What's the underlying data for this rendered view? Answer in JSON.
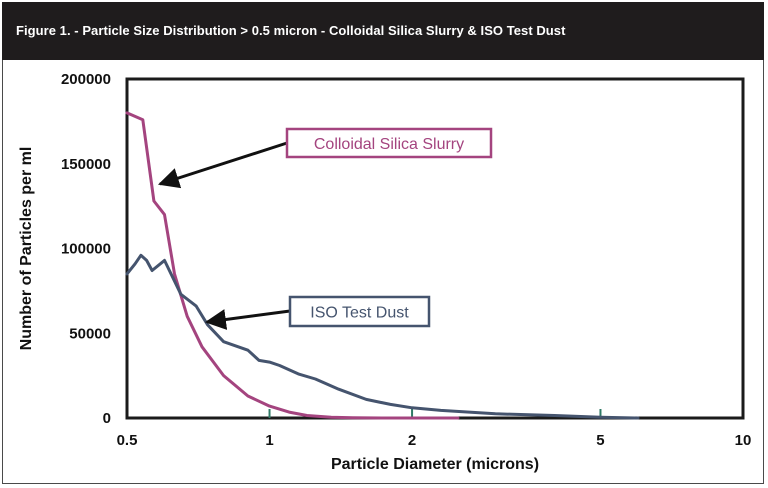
{
  "chart_data": {
    "type": "line",
    "title": "Figure 1. - Particle Size Distribution > 0.5 micron - Colloidal Silica Slurry & ISO Test Dust",
    "xlabel": "Particle Diameter (microns)",
    "ylabel": "Number of Particles per ml",
    "x_scale": "log",
    "xlim": [
      0.5,
      10
    ],
    "ylim": [
      0,
      200000
    ],
    "x_ticks": [
      0.5,
      1,
      2,
      5,
      10
    ],
    "x_tick_labels": [
      "0.5",
      "1",
      "2",
      "5",
      "10"
    ],
    "y_ticks": [
      0,
      50000,
      100000,
      150000,
      200000
    ],
    "y_tick_labels": [
      "0",
      "50000",
      "100000",
      "150000",
      "200000"
    ],
    "grid": false,
    "series": [
      {
        "name": "Colloidal Silica Slurry",
        "color": "#a4447f",
        "x": [
          0.5,
          0.54,
          0.57,
          0.6,
          0.63,
          0.67,
          0.72,
          0.8,
          0.9,
          1.0,
          1.1,
          1.2,
          1.35,
          1.5,
          1.8,
          2.5
        ],
        "y": [
          180000,
          176000,
          128000,
          120000,
          85000,
          60000,
          42000,
          25000,
          13000,
          7000,
          3500,
          1500,
          400,
          100,
          0,
          0
        ]
      },
      {
        "name": "ISO Test Dust",
        "color": "#45546e",
        "x": [
          0.5,
          0.52,
          0.535,
          0.55,
          0.565,
          0.6,
          0.65,
          0.7,
          0.74,
          0.8,
          0.9,
          0.95,
          1.0,
          1.05,
          1.15,
          1.25,
          1.4,
          1.6,
          1.8,
          2.0,
          2.3,
          3.0,
          4.0,
          5.0,
          6.0
        ],
        "y": [
          85000,
          91000,
          96000,
          93000,
          87000,
          93000,
          73000,
          66000,
          55000,
          45000,
          40000,
          34000,
          33000,
          31000,
          26000,
          23000,
          17000,
          11000,
          8000,
          6000,
          4500,
          2500,
          1500,
          500,
          0
        ]
      }
    ],
    "annotations": [
      {
        "text": "Colloidal Silica Slurry",
        "target_series": "Colloidal Silica Slurry"
      },
      {
        "text": "ISO Test Dust",
        "target_series": "ISO Test Dust"
      }
    ]
  }
}
